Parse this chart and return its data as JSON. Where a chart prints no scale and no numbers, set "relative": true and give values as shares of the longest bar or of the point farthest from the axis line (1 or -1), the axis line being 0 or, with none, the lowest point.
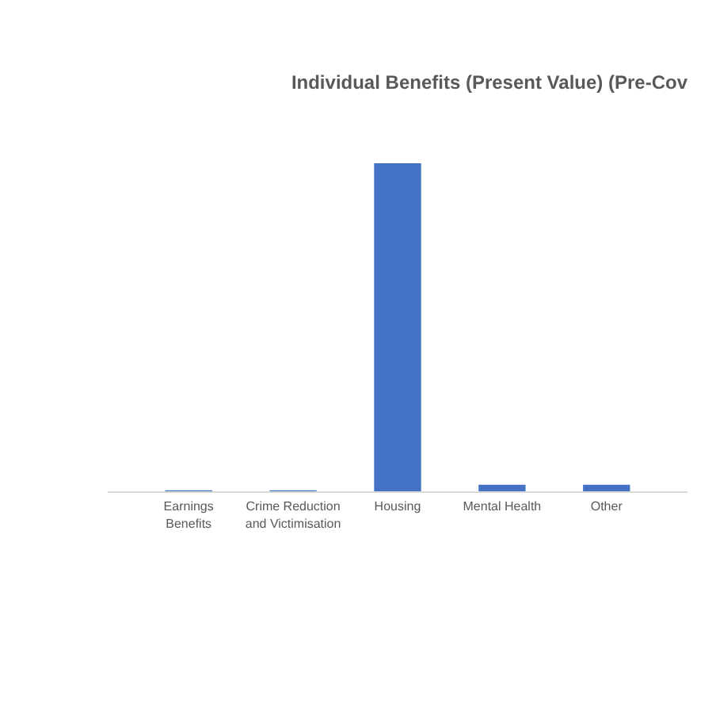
{
  "chart_data": {
    "type": "bar",
    "title": "Individual Benefits (Present Value) (Pre-Cov",
    "categories": [
      "Earnings Benefits",
      "Crime Reduction and Victimisation",
      "Housing",
      "Mental Health",
      "Other"
    ],
    "values": [
      0.003,
      0.003,
      1,
      0.02,
      0.02
    ],
    "color": "#4472c4",
    "relative": true
  }
}
